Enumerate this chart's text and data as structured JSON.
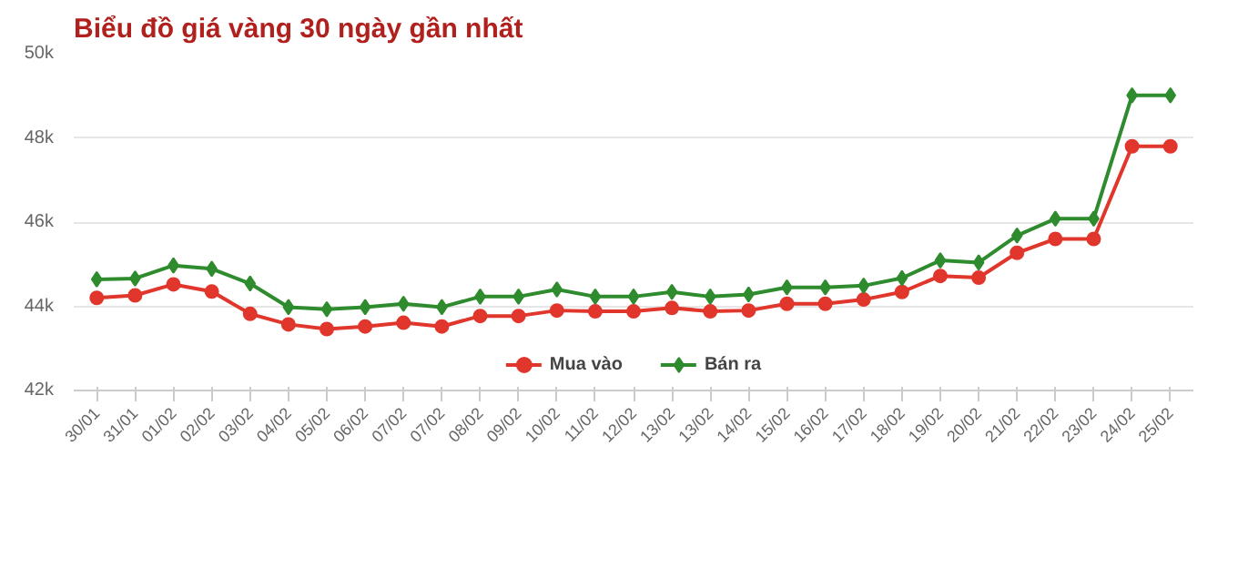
{
  "chart_data": {
    "type": "line",
    "title": "Biểu đồ giá vàng 30 ngày gần nhất",
    "categories": [
      "30/01",
      "31/01",
      "01/02",
      "02/02",
      "03/02",
      "04/02",
      "05/02",
      "06/02",
      "07/02",
      "07/02",
      "08/02",
      "09/02",
      "10/02",
      "11/02",
      "12/02",
      "13/02",
      "13/02",
      "14/02",
      "15/02",
      "16/02",
      "17/02",
      "18/02",
      "19/02",
      "20/02",
      "21/02",
      "22/02",
      "23/02",
      "24/02",
      "25/02"
    ],
    "series": [
      {
        "name": "Mua vào",
        "color": "#e0362c",
        "marker": "circle",
        "values": [
          44200,
          44260,
          44520,
          44350,
          43820,
          43570,
          43460,
          43520,
          43610,
          43520,
          43770,
          43770,
          43900,
          43880,
          43880,
          43960,
          43880,
          43900,
          44060,
          44060,
          44160,
          44340,
          44720,
          44680,
          45270,
          45600,
          45600,
          47800,
          47800
        ]
      },
      {
        "name": "Bán ra",
        "color": "#2e8b2e",
        "marker": "diamond",
        "values": [
          44640,
          44660,
          44970,
          44890,
          44540,
          43980,
          43930,
          43980,
          44060,
          43980,
          44230,
          44230,
          44400,
          44230,
          44230,
          44340,
          44230,
          44280,
          44450,
          44450,
          44490,
          44670,
          45090,
          45040,
          45680,
          46080,
          46080,
          49010,
          49010
        ]
      }
    ],
    "ylim": [
      42000,
      50000
    ],
    "yticks": [
      {
        "value": 42000,
        "label": "42k"
      },
      {
        "value": 44000,
        "label": "44k"
      },
      {
        "value": 46000,
        "label": "46k"
      },
      {
        "value": 48000,
        "label": "48k"
      },
      {
        "value": 50000,
        "label": "50k"
      }
    ],
    "grid": "y",
    "legend": "bottom",
    "line_style": "solid"
  }
}
